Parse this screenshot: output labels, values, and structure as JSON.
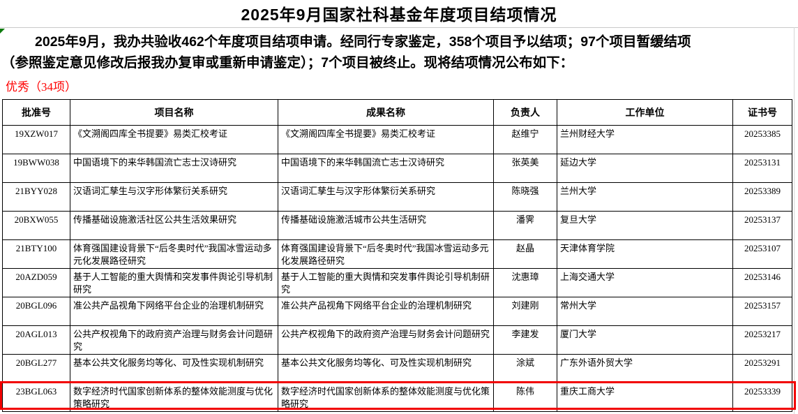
{
  "page": {
    "title": "2025年9月国家社科基金年度项目结项情况",
    "intro_lines": [
      "2025年9月，我办共验收462个年度项目结项申请。经同行专家鉴定，358个项目予以结项；97个项目暂缓结项",
      "（参照鉴定意见修改后报我办复审或重新申请鉴定）；7个项目被终止。现将结项情况公布如下："
    ],
    "section_label": "优秀（34项）"
  },
  "colors": {
    "highlight_red": "#f20000",
    "label_red": "#fe0000"
  },
  "table": {
    "headers": [
      "批准号",
      "项目名称",
      "成果名称",
      "负责人",
      "工作单位",
      "证书号"
    ],
    "rows": [
      [
        "19XZW017",
        "《文溯阁四库全书提要》易类汇校考证",
        "《文溯阁四库全书提要》易类汇校考证",
        "赵维宁",
        "兰州财经大学",
        "20253385"
      ],
      [
        "19BWW038",
        "中国语境下的来华韩国流亡志士汉诗研究",
        "中国语境下的来华韩国流亡志士汉诗研究",
        "张英美",
        "延边大学",
        "20253131"
      ],
      [
        "21BYY028",
        "汉语词汇孳生与汉字形体繁衍关系研究",
        "汉语词汇孳生与汉字形体繁衍关系研究",
        "陈晓强",
        "兰州大学",
        "20253389"
      ],
      [
        "20BXW055",
        "传播基础设施激活社区公共生活效果研究",
        "传播基础设施激活城市公共生活研究",
        "潘霁",
        "复旦大学",
        "20253137"
      ],
      [
        "21BTY100",
        "体育强国建设背景下“后冬奥时代”我国冰雪运动多元化发展路径研究",
        "体育强国建设背景下“后冬奥时代”我国冰雪运动多元化发展路径研究",
        "赵晶",
        "天津体育学院",
        "20253107"
      ],
      [
        "20AZD059",
        "基于人工智能的重大舆情和突发事件舆论引导机制研究",
        "基于人工智能的重大舆情和突发事件舆论引导机制研究",
        "沈惠璋",
        "上海交通大学",
        "20253146"
      ],
      [
        "20BGL096",
        "准公共产品视角下网络平台企业的治理机制研究",
        "准公共产品视角下网络平台企业的治理机制研究",
        "刘建刚",
        "常州大学",
        "20253157"
      ],
      [
        "20AGL013",
        "公共产权视角下的政府资产治理与财务会计问题研究",
        "公共产权视角下的政府资产治理与财务会计问题研究",
        "李建发",
        "厦门大学",
        "20253217"
      ],
      [
        "20BGL277",
        "基本公共文化服务均等化、可及性实现机制研究",
        "基本公共文化服务均等化、可及性实现机制研究",
        "涂斌",
        "广东外语外贸大学",
        "20253291"
      ],
      [
        "23BGL063",
        "数字经济时代国家创新体系的整体效能测度与优化策略研究",
        "数字经济时代国家创新体系的整体效能测度与优化策略研究",
        "陈伟",
        "重庆工商大学",
        "20253339"
      ]
    ],
    "highlighted_row_index": 9
  }
}
